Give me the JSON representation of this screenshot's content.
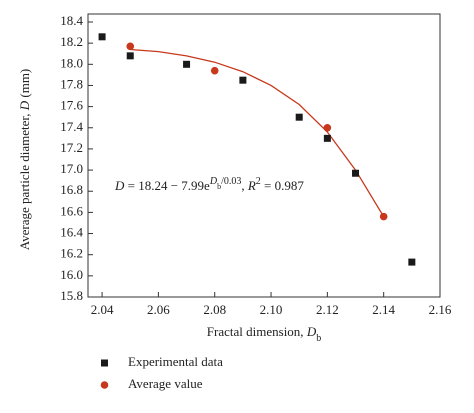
{
  "chart_data": {
    "type": "scatter",
    "x_label_parts": [
      "Fractal dimension, ",
      "D",
      "b"
    ],
    "y_label_parts": [
      "Average particle diameter, ",
      "D",
      " (mm)"
    ],
    "annotation_parts": [
      "D",
      " = 18.24 − 7.99e",
      "D",
      "b",
      "/0.03",
      ", ",
      "R",
      "2",
      " = 0.987"
    ],
    "xlim": [
      2.035,
      2.16
    ],
    "xticks": [
      2.04,
      2.06,
      2.08,
      {
        "value": 2.1,
        "label": "2.10"
      },
      2.12,
      2.14,
      2.16
    ],
    "ylim": [
      15.8,
      18.4
    ],
    "yticks": [
      15.8,
      {
        "value": 16,
        "label": "16.0"
      },
      16.2,
      16.4,
      16.6,
      16.8,
      {
        "value": 17,
        "label": "17.0"
      },
      17.2,
      17.4,
      17.6,
      17.8,
      {
        "value": 18,
        "label": "18.0"
      },
      18.2,
      18.4
    ],
    "series": [
      {
        "name": "Experimental data",
        "color": "#1a1a1a",
        "marker": "square",
        "x": [
          2.04,
          2.05,
          2.07,
          2.09,
          2.11,
          2.12,
          2.13,
          2.15
        ],
        "values": [
          18.26,
          18.08,
          18.0,
          17.85,
          17.5,
          17.3,
          16.97,
          16.13
        ]
      },
      {
        "name": "Average value",
        "color": "#c8381c",
        "marker": "circle",
        "x": [
          2.05,
          2.08,
          2.12,
          2.14
        ],
        "values": [
          18.17,
          17.94,
          17.4,
          16.56
        ]
      },
      {
        "color": "#c8381c",
        "marker": "line",
        "x": [
          2.05,
          2.06,
          2.07,
          2.08,
          2.09,
          2.1,
          2.11,
          2.12,
          2.13,
          2.14
        ],
        "values": [
          18.14,
          18.12,
          18.08,
          18.02,
          17.93,
          17.8,
          17.62,
          17.36,
          17.0,
          16.56
        ]
      }
    ]
  }
}
